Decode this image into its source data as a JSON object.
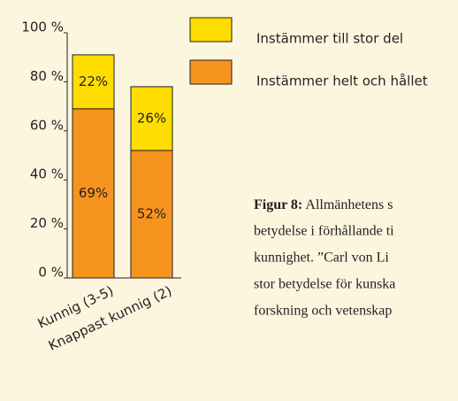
{
  "chart_data": {
    "type": "stacked-bar",
    "categories": [
      "Kunnig (3-5)",
      "Knappast kunnig (2)"
    ],
    "series": [
      {
        "name": "Instämmer helt och hållet",
        "color": "#f7941d",
        "values": [
          69,
          52
        ],
        "value_labels": [
          "69%",
          "52%"
        ]
      },
      {
        "name": "Instämmer till stor del",
        "color": "#ffdd00",
        "values": [
          22,
          26
        ],
        "value_labels": [
          "22%",
          "26%"
        ]
      }
    ],
    "ylim": [
      0,
      100
    ],
    "yticks": [
      {
        "value": 0,
        "label": "0 %"
      },
      {
        "value": 20,
        "label": "20 %"
      },
      {
        "value": 40,
        "label": "40 %"
      },
      {
        "value": 60,
        "label": "60 %"
      },
      {
        "value": 80,
        "label": "80 %"
      },
      {
        "value": 100,
        "label": "100 %"
      }
    ]
  },
  "caption": {
    "label": "Figur 8:",
    "first": " Allmänhetens s",
    "lines": [
      "betydelse i förhållande ti",
      "kunnighet. ”Carl von Li",
      "stor betydelse för kunska",
      "forskning och vetenskap"
    ]
  }
}
